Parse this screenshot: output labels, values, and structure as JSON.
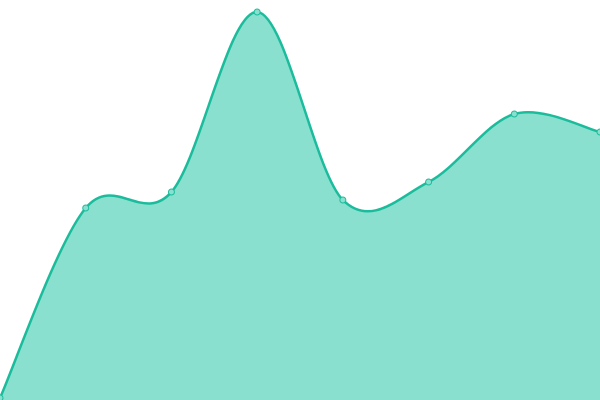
{
  "chart_data": {
    "type": "area",
    "x": [
      0,
      1,
      2,
      3,
      4,
      5,
      6,
      7
    ],
    "series": [
      {
        "values": [
          0.5,
          48,
          52,
          97,
          50,
          54.5,
          71.5,
          67
        ]
      }
    ],
    "ylim": [
      0,
      100
    ],
    "xlim": [
      0,
      7
    ],
    "smooth": true,
    "grid": false,
    "axes_visible": false,
    "legend": "none",
    "colors": {
      "line": "#1abc9c",
      "fill": "#8ae0cf",
      "marker_fill": "#8ae0cf"
    }
  }
}
